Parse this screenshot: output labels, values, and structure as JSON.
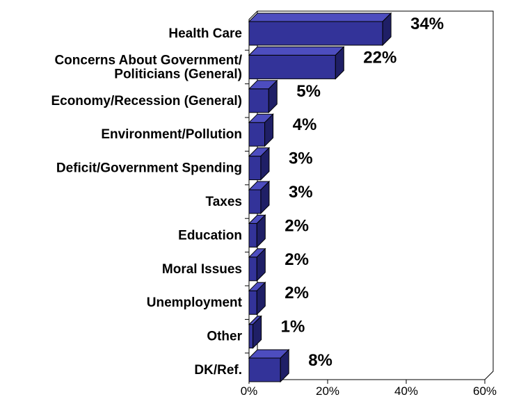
{
  "chart_data": {
    "type": "bar",
    "orientation": "horizontal",
    "three_d": true,
    "title": "",
    "xlabel": "",
    "ylabel": "",
    "categories": [
      [
        "Health Care"
      ],
      [
        "Concerns About Government/",
        "Politicians (General)"
      ],
      [
        "Economy/Recession (General)"
      ],
      [
        "Environment/Pollution"
      ],
      [
        "Deficit/Government Spending"
      ],
      [
        "Taxes"
      ],
      [
        "Education"
      ],
      [
        "Moral Issues"
      ],
      [
        "Unemployment"
      ],
      [
        "Other"
      ],
      [
        "DK/Ref."
      ]
    ],
    "values": [
      34,
      22,
      5,
      4,
      3,
      3,
      2,
      2,
      2,
      1,
      8
    ],
    "value_labels": [
      "34%",
      "22%",
      "5%",
      "4%",
      "3%",
      "3%",
      "2%",
      "2%",
      "2%",
      "1%",
      "8%"
    ],
    "xlim": [
      0,
      60
    ],
    "x_ticks": [
      0,
      20,
      40,
      60
    ],
    "x_tick_labels": [
      "0%",
      "20%",
      "40%",
      "60%"
    ],
    "grid": false,
    "legend": "none",
    "colors": {
      "bar_front": "#333399",
      "bar_top": "#4d4dbf",
      "bar_side": "#1f1f66",
      "bar_stroke": "#000000",
      "axis": "#000000"
    }
  }
}
